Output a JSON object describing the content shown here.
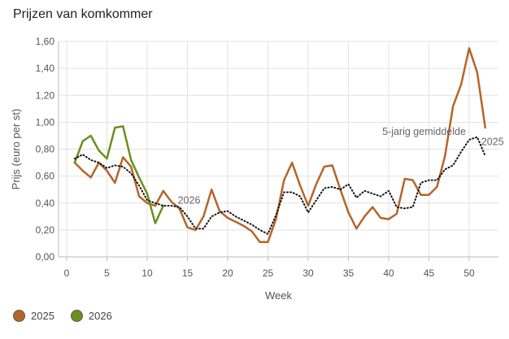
{
  "title": "Prijzen van komkommer",
  "colors": {
    "s2025": "#b5652a",
    "s2026": "#6b8e1f",
    "avg": "#111111",
    "grid": "#e2e2e2",
    "axis": "#bbbbbb",
    "text": "#555555"
  },
  "chart_data": {
    "type": "line",
    "title": "Prijzen van komkommer",
    "xlabel": "Week",
    "ylabel": "Prijs (euro per st)",
    "xlim": [
      0,
      53
    ],
    "ylim": [
      0,
      1.6
    ],
    "xticks": [
      0,
      5,
      10,
      15,
      20,
      25,
      30,
      35,
      40,
      45,
      50
    ],
    "yticks": [
      0,
      0.2,
      0.4,
      0.6,
      0.8,
      1.0,
      1.2,
      1.4,
      1.6
    ],
    "ytick_labels": [
      "0,00",
      "0,20",
      "0,40",
      "0,60",
      "0,80",
      "1,00",
      "1,20",
      "1,40",
      "1,60"
    ],
    "grid": true,
    "legend_position": "bottom-left",
    "series": [
      {
        "name": "2025",
        "key": "s2025",
        "style": "solid",
        "x": [
          1,
          2,
          3,
          4,
          5,
          6,
          7,
          8,
          9,
          10,
          11,
          12,
          13,
          14,
          15,
          16,
          17,
          18,
          19,
          20,
          21,
          22,
          23,
          24,
          25,
          26,
          27,
          28,
          29,
          30,
          31,
          32,
          33,
          34,
          35,
          36,
          37,
          38,
          39,
          40,
          41,
          42,
          43,
          44,
          45,
          46,
          47,
          48,
          49,
          50,
          51,
          52
        ],
        "values": [
          0.7,
          0.64,
          0.59,
          0.7,
          0.64,
          0.55,
          0.74,
          0.67,
          0.45,
          0.4,
          0.38,
          0.49,
          0.41,
          0.36,
          0.22,
          0.2,
          0.3,
          0.5,
          0.34,
          0.29,
          0.26,
          0.23,
          0.19,
          0.11,
          0.11,
          0.28,
          0.57,
          0.7,
          0.53,
          0.38,
          0.54,
          0.67,
          0.68,
          0.5,
          0.33,
          0.21,
          0.3,
          0.37,
          0.29,
          0.28,
          0.32,
          0.58,
          0.57,
          0.46,
          0.46,
          0.52,
          0.75,
          1.12,
          1.28,
          1.55,
          1.37,
          0.96
        ]
      },
      {
        "name": "2026",
        "key": "s2026",
        "style": "solid",
        "x": [
          1,
          2,
          3,
          4,
          5,
          6,
          7,
          8,
          9,
          10,
          11,
          12
        ],
        "values": [
          0.7,
          0.86,
          0.9,
          0.79,
          0.73,
          0.96,
          0.97,
          0.72,
          0.59,
          0.47,
          0.25,
          0.38
        ]
      },
      {
        "name": "5-jarig gemiddelde",
        "key": "avg",
        "style": "dotted",
        "x": [
          1,
          2,
          3,
          4,
          5,
          6,
          7,
          8,
          9,
          10,
          11,
          12,
          13,
          14,
          15,
          16,
          17,
          18,
          19,
          20,
          21,
          22,
          23,
          24,
          25,
          26,
          27,
          28,
          29,
          30,
          31,
          32,
          33,
          34,
          35,
          36,
          37,
          38,
          39,
          40,
          41,
          42,
          43,
          44,
          45,
          46,
          47,
          48,
          49,
          50,
          51,
          52
        ],
        "values": [
          0.73,
          0.76,
          0.72,
          0.7,
          0.66,
          0.68,
          0.67,
          0.62,
          0.53,
          0.42,
          0.4,
          0.38,
          0.38,
          0.37,
          0.3,
          0.21,
          0.21,
          0.3,
          0.33,
          0.34,
          0.3,
          0.27,
          0.24,
          0.2,
          0.17,
          0.31,
          0.48,
          0.48,
          0.45,
          0.33,
          0.42,
          0.51,
          0.52,
          0.5,
          0.54,
          0.44,
          0.49,
          0.47,
          0.45,
          0.49,
          0.37,
          0.36,
          0.37,
          0.55,
          0.57,
          0.57,
          0.65,
          0.68,
          0.78,
          0.87,
          0.89,
          0.75
        ]
      }
    ],
    "annotations": [
      {
        "text": "2026",
        "x": 13.8,
        "y": 0.395
      },
      {
        "text": "5-jarig gemiddelde",
        "x": 39.2,
        "y": 0.905
      },
      {
        "text": "2025",
        "x": 51.5,
        "y": 0.83
      }
    ]
  },
  "legend": [
    {
      "label": "2025",
      "color_key": "s2025"
    },
    {
      "label": "2026",
      "color_key": "s2026"
    }
  ]
}
